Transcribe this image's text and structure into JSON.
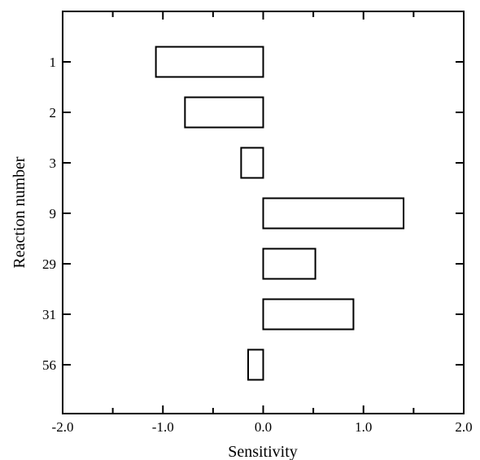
{
  "chart_data": {
    "type": "bar",
    "orientation": "horizontal",
    "categories": [
      "1",
      "2",
      "3",
      "9",
      "29",
      "31",
      "56"
    ],
    "values": [
      -1.07,
      -0.78,
      -0.22,
      1.4,
      0.52,
      0.9,
      -0.15
    ],
    "xlabel": "Sensitivity",
    "ylabel": "Reaction number",
    "xlim": [
      -2.0,
      2.0
    ],
    "xticks": [
      -2.0,
      -1.0,
      0.0,
      1.0,
      2.0
    ],
    "xtick_labels": [
      "-2.0",
      "-1.0",
      "0.0",
      "1.0",
      "2.0"
    ],
    "grid": false,
    "bar_fill": "#ffffff",
    "bar_stroke": "#000000"
  }
}
